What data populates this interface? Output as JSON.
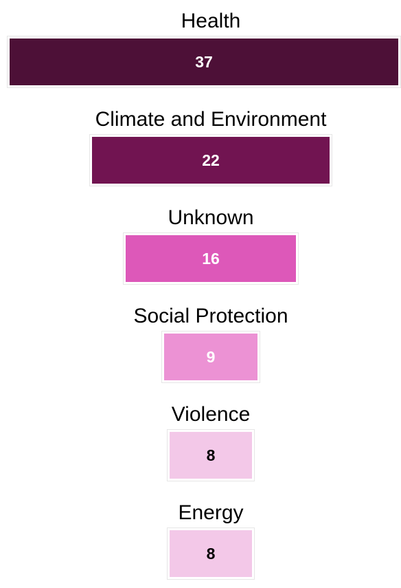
{
  "chart_data": {
    "type": "bar",
    "orientation": "horizontal-funnel",
    "categories": [
      "Health",
      "Climate and Environment",
      "Unknown",
      "Social Protection",
      "Violence",
      "Energy"
    ],
    "values": [
      37,
      22,
      16,
      9,
      8,
      8
    ],
    "colors": [
      "#4d1037",
      "#711451",
      "#dd58b9",
      "#ec92d4",
      "#f3c8e8",
      "#f3c8e8"
    ],
    "label_colors": [
      "#ffffff",
      "#ffffff",
      "#ffffff",
      "#ffffff",
      "#000000",
      "#000000"
    ],
    "data_labels": [
      "37",
      "22",
      "16",
      "9",
      "8",
      "8"
    ],
    "legend": "none",
    "grid": false
  }
}
